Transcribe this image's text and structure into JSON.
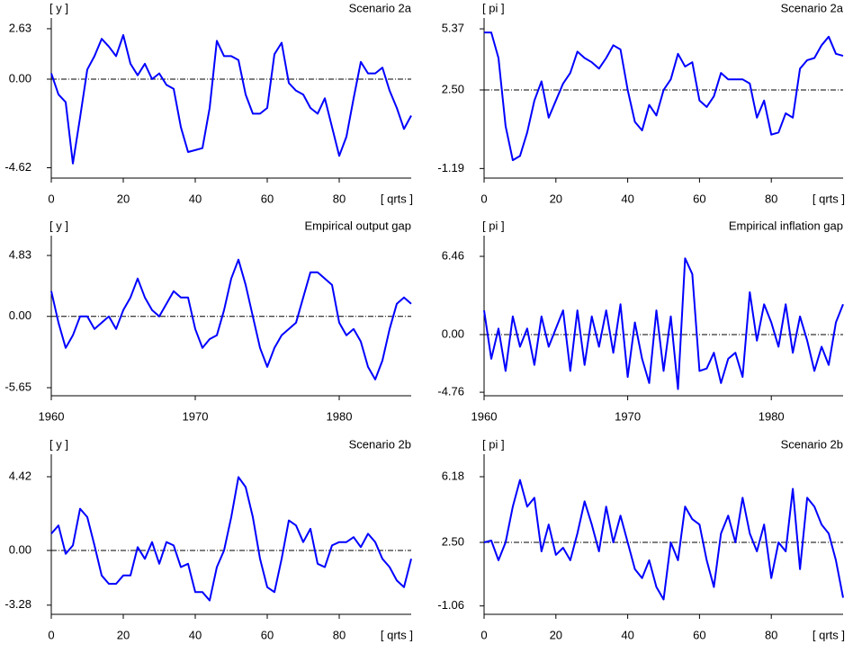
{
  "chart_data": [
    {
      "type": "line",
      "title": "Scenario 2a",
      "y_label": "[ y ]",
      "x_label": "[ qrts ]",
      "color": "#0000ff",
      "reference": 0,
      "xlim": [
        0,
        100
      ],
      "xticks": [
        0,
        20,
        40,
        60,
        80
      ],
      "ylim": [
        -5.16,
        3.19
      ],
      "yticks": [
        2.63,
        {
          "value": 0,
          "label": "0.00"
        },
        -4.62
      ],
      "x": [
        0,
        2,
        4,
        6,
        8,
        10,
        12,
        14,
        16,
        18,
        20,
        22,
        24,
        26,
        28,
        30,
        32,
        34,
        36,
        38,
        40,
        42,
        44,
        46,
        48,
        50,
        52,
        54,
        56,
        58,
        60,
        62,
        64,
        66,
        68,
        70,
        72,
        74,
        76,
        78,
        80,
        82,
        84,
        86,
        88,
        90,
        92,
        94,
        96,
        98,
        100
      ],
      "values": [
        0.3,
        -0.8,
        -1.2,
        -4.4,
        -2.0,
        0.5,
        1.2,
        2.1,
        1.7,
        1.2,
        2.3,
        0.8,
        0.2,
        0.8,
        0.0,
        0.3,
        -0.3,
        -0.5,
        -2.5,
        -3.8,
        -3.7,
        -3.6,
        -1.5,
        2.0,
        1.2,
        1.2,
        1.0,
        -0.8,
        -1.8,
        -1.8,
        -1.5,
        1.3,
        1.9,
        -0.2,
        -0.6,
        -0.8,
        -1.5,
        -1.8,
        -1.0,
        -2.5,
        -4.0,
        -3.0,
        -1.0,
        0.9,
        0.3,
        0.3,
        0.6,
        -0.6,
        -1.5,
        -2.6,
        -1.9
      ]
    },
    {
      "type": "line",
      "title": "Scenario 2a",
      "y_label": "[ pi ]",
      "x_label": "[ qrts ]",
      "color": "#0000ff",
      "reference": 2.5,
      "xlim": [
        0,
        100
      ],
      "xticks": [
        0,
        20,
        40,
        60,
        80
      ],
      "ylim": [
        -1.64,
        5.88
      ],
      "yticks": [
        5.37,
        {
          "value": 2.5,
          "label": "2.50"
        },
        -1.19
      ],
      "x": [
        0,
        2,
        4,
        6,
        8,
        10,
        12,
        14,
        16,
        18,
        20,
        22,
        24,
        26,
        28,
        30,
        32,
        34,
        36,
        38,
        40,
        42,
        44,
        46,
        48,
        50,
        52,
        54,
        56,
        58,
        60,
        62,
        64,
        66,
        68,
        70,
        72,
        74,
        76,
        78,
        80,
        82,
        84,
        86,
        88,
        90,
        92,
        94,
        96,
        98,
        100
      ],
      "values": [
        5.2,
        5.2,
        4.0,
        0.8,
        -0.8,
        -0.6,
        0.5,
        2.0,
        2.9,
        1.2,
        2.0,
        2.8,
        3.3,
        4.3,
        4.0,
        3.8,
        3.5,
        4.0,
        4.6,
        4.4,
        2.5,
        1.0,
        0.6,
        1.8,
        1.3,
        2.5,
        3.0,
        4.2,
        3.6,
        3.8,
        2.0,
        1.7,
        2.2,
        3.3,
        3.0,
        3.0,
        3.0,
        2.8,
        1.2,
        2.0,
        0.4,
        0.5,
        1.4,
        1.2,
        3.5,
        3.9,
        4.0,
        4.6,
        5.0,
        4.2,
        4.1
      ]
    },
    {
      "type": "line",
      "title": "Empirical output gap",
      "y_label": "[ y ]",
      "color": "#0000ff",
      "reference": 0,
      "xlim": [
        1960,
        1985
      ],
      "xticks": [
        1960,
        1970,
        1980
      ],
      "ylim": [
        -6.29,
        6.4
      ],
      "yticks": [
        4.83,
        {
          "value": 0,
          "label": "0.00"
        },
        -5.65
      ],
      "x": [
        1960,
        1960.5,
        1961,
        1961.5,
        1962,
        1962.5,
        1963,
        1963.5,
        1964,
        1964.5,
        1965,
        1965.5,
        1966,
        1966.5,
        1967,
        1967.5,
        1968,
        1968.5,
        1969,
        1969.5,
        1970,
        1970.5,
        1971,
        1971.5,
        1972,
        1972.5,
        1973,
        1973.5,
        1974,
        1974.5,
        1975,
        1975.5,
        1976,
        1976.5,
        1977,
        1977.5,
        1978,
        1978.5,
        1979,
        1979.5,
        1980,
        1980.5,
        1981,
        1981.5,
        1982,
        1982.5,
        1983,
        1983.5,
        1984,
        1984.5,
        1985
      ],
      "values": [
        2.0,
        -0.5,
        -2.5,
        -1.5,
        0.0,
        0.0,
        -1.0,
        -0.5,
        0.0,
        -1.0,
        0.5,
        1.5,
        3.0,
        1.5,
        0.5,
        0.0,
        1.0,
        2.0,
        1.5,
        1.5,
        -1.0,
        -2.5,
        -1.8,
        -1.5,
        0.5,
        3.0,
        4.5,
        2.5,
        0.0,
        -2.5,
        -4.0,
        -2.5,
        -1.5,
        -1.0,
        -0.5,
        1.5,
        3.5,
        3.5,
        3.0,
        2.5,
        -0.5,
        -1.5,
        -1.0,
        -2.0,
        -4.0,
        -5.0,
        -3.5,
        -1.0,
        1.0,
        1.5,
        1.0
      ]
    },
    {
      "type": "line",
      "title": "Empirical inflation gap",
      "y_label": "[ pi ]",
      "color": "#0000ff",
      "reference": 0,
      "xlim": [
        1960,
        1985
      ],
      "xticks": [
        1960,
        1970,
        1980
      ],
      "ylim": [
        -5.05,
        8.17
      ],
      "yticks": [
        6.46,
        {
          "value": 0,
          "label": "0.00"
        },
        -4.76
      ],
      "x": [
        1960,
        1960.5,
        1961,
        1961.5,
        1962,
        1962.5,
        1963,
        1963.5,
        1964,
        1964.5,
        1965,
        1965.5,
        1966,
        1966.5,
        1967,
        1967.5,
        1968,
        1968.5,
        1969,
        1969.5,
        1970,
        1970.5,
        1971,
        1971.5,
        1972,
        1972.5,
        1973,
        1973.5,
        1974,
        1974.5,
        1975,
        1975.5,
        1976,
        1976.5,
        1977,
        1977.5,
        1978,
        1978.5,
        1979,
        1979.5,
        1980,
        1980.5,
        1981,
        1981.5,
        1982,
        1982.5,
        1983,
        1983.5,
        1984,
        1984.5,
        1985
      ],
      "values": [
        2,
        -2,
        0.5,
        -3,
        1.5,
        -1,
        0.5,
        -2.5,
        1.5,
        -1,
        0.5,
        2,
        -3,
        2,
        -2.5,
        1.5,
        -1,
        2,
        -1.5,
        2.5,
        -3.5,
        1,
        -2,
        -4,
        2,
        -3,
        1.5,
        -4.5,
        6.3,
        5,
        -3,
        -2.8,
        -1.5,
        -4,
        -2,
        -1.5,
        -3.5,
        3.5,
        -0.5,
        2.5,
        1,
        -1,
        2.5,
        -1.5,
        1.5,
        -0.5,
        -3,
        -1,
        -2.5,
        1,
        2.5
      ]
    },
    {
      "type": "line",
      "title": "Scenario 2b",
      "y_label": "[ y ]",
      "x_label": "[ qrts ]",
      "color": "#0000ff",
      "reference": 0,
      "xlim": [
        0,
        100
      ],
      "xticks": [
        0,
        20,
        40,
        60,
        80
      ],
      "ylim": [
        -3.83,
        5.77
      ],
      "yticks": [
        4.42,
        {
          "value": 0,
          "label": "0.00"
        },
        -3.28
      ],
      "x": [
        0,
        2,
        4,
        6,
        8,
        10,
        12,
        14,
        16,
        18,
        20,
        22,
        24,
        26,
        28,
        30,
        32,
        34,
        36,
        38,
        40,
        42,
        44,
        46,
        48,
        50,
        52,
        54,
        56,
        58,
        60,
        62,
        64,
        66,
        68,
        70,
        72,
        74,
        76,
        78,
        80,
        82,
        84,
        86,
        88,
        90,
        92,
        94,
        96,
        98,
        100
      ],
      "values": [
        1.0,
        1.5,
        -0.2,
        0.3,
        2.5,
        2.0,
        0.3,
        -1.5,
        -2.0,
        -2.0,
        -1.5,
        -1.5,
        0.2,
        -0.5,
        0.5,
        -0.8,
        0.5,
        0.3,
        -1.0,
        -0.8,
        -2.5,
        -2.5,
        -3.0,
        -1.0,
        0.0,
        2.0,
        4.4,
        3.8,
        2.0,
        -0.5,
        -2.2,
        -2.5,
        -0.5,
        1.8,
        1.5,
        0.5,
        1.3,
        -0.8,
        -1.0,
        0.3,
        0.5,
        0.5,
        0.8,
        0.2,
        1.0,
        0.5,
        -0.5,
        -1.0,
        -1.8,
        -2.2,
        -0.5
      ]
    },
    {
      "type": "line",
      "title": "Scenario 2b",
      "y_label": "[ pi ]",
      "x_label": "[ qrts ]",
      "color": "#0000ff",
      "reference": 2.5,
      "xlim": [
        0,
        100
      ],
      "xticks": [
        0,
        20,
        40,
        60,
        80
      ],
      "ylim": [
        -1.53,
        7.44
      ],
      "yticks": [
        6.18,
        {
          "value": 2.5,
          "label": "2.50"
        },
        -1.06
      ],
      "x": [
        0,
        2,
        4,
        6,
        8,
        10,
        12,
        14,
        16,
        18,
        20,
        22,
        24,
        26,
        28,
        30,
        32,
        34,
        36,
        38,
        40,
        42,
        44,
        46,
        48,
        50,
        52,
        54,
        56,
        58,
        60,
        62,
        64,
        66,
        68,
        70,
        72,
        74,
        76,
        78,
        80,
        82,
        84,
        86,
        88,
        90,
        92,
        94,
        96,
        98,
        100
      ],
      "values": [
        2.5,
        2.6,
        1.5,
        2.5,
        4.5,
        6.0,
        4.5,
        5.0,
        2.0,
        3.5,
        1.8,
        2.2,
        1.5,
        3.0,
        4.8,
        3.5,
        2.0,
        4.5,
        2.5,
        4.0,
        2.5,
        1.0,
        0.5,
        1.5,
        0.0,
        -0.7,
        2.5,
        1.5,
        4.5,
        3.8,
        3.5,
        1.5,
        0.0,
        3.0,
        4.0,
        2.5,
        5.0,
        3.0,
        2.0,
        3.5,
        0.5,
        2.5,
        2.0,
        5.5,
        1.0,
        5.0,
        4.5,
        3.5,
        3.0,
        1.5,
        -0.6
      ]
    }
  ]
}
